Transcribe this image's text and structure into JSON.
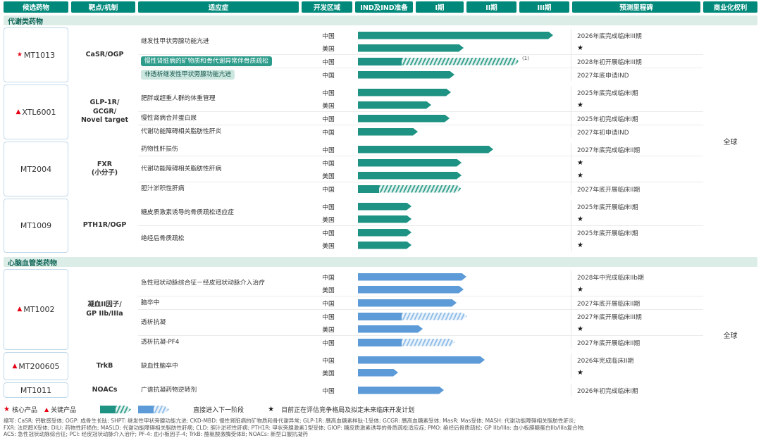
{
  "header": {
    "columns": [
      "候选药物",
      "靶点/机制",
      "适应症",
      "开发区域",
      "IND及IND准备",
      "I期",
      "II期",
      "III期",
      "预测里程碑",
      "商业化权利"
    ]
  },
  "sections": [
    {
      "title": "代谢类药物",
      "theme": "teal",
      "rights": "全球",
      "drugs": [
        {
          "marker": "★",
          "name": "MT1013",
          "target": "CaSR/OGP",
          "indications": [
            {
              "label": "继发性甲状旁腺功能亢进",
              "style": "plain",
              "rows": [
                {
                  "region": "中国",
                  "solid": 277,
                  "hatch": 0,
                  "note": "",
                  "milestone": "2026年底完成临床III期"
                },
                {
                  "region": "美国",
                  "solid": 150,
                  "hatch": 0,
                  "note": "",
                  "milestone": "★"
                }
              ]
            },
            {
              "label": "慢性肾脏病的矿物质和骨代谢异常伴骨质疏松",
              "style": "pill-dark",
              "rows": [
                {
                  "region": "中国",
                  "solid": 62,
                  "hatch": 167,
                  "note": "(1)",
                  "milestone": "2028年初开展临床III期"
                }
              ]
            },
            {
              "label": "非透析继发性甲状旁腺功能亢进",
              "style": "pill-light",
              "rows": [
                {
                  "region": "中国",
                  "solid": 137,
                  "hatch": 0,
                  "note": "",
                  "milestone": "2027年底申请IND"
                }
              ]
            }
          ]
        },
        {
          "marker": "▲",
          "name": "XTL6001",
          "target": "GLP-1R/\nGCGR/\nNovel target",
          "indications": [
            {
              "label": "肥胖或超重人群的体重管理",
              "style": "plain",
              "rows": [
                {
                  "region": "中国",
                  "solid": 132,
                  "hatch": 0,
                  "note": "",
                  "milestone": "2025年底完成临床I期"
                },
                {
                  "region": "美国",
                  "solid": 104,
                  "hatch": 0,
                  "note": "",
                  "milestone": "★"
                }
              ]
            },
            {
              "label": "慢性肾病合并蛋白尿",
              "style": "plain",
              "rows": [
                {
                  "region": "中国",
                  "solid": 130,
                  "hatch": 0,
                  "note": "",
                  "milestone": "2025年初完成临床I期"
                }
              ]
            },
            {
              "label": "代谢功能障碍相关脂肪性肝炎",
              "style": "plain",
              "rows": [
                {
                  "region": "中国",
                  "solid": 85,
                  "hatch": 0,
                  "note": "",
                  "milestone": "2027年初申请IND"
                }
              ]
            }
          ]
        },
        {
          "marker": "",
          "name": "MT2004",
          "target": "FXR\n(小分子)",
          "indications": [
            {
              "label": "药物性肝损伤",
              "style": "plain",
              "rows": [
                {
                  "region": "中国",
                  "solid": 192,
                  "hatch": 0,
                  "note": "",
                  "milestone": "2027年底完成临床II期"
                }
              ]
            },
            {
              "label": "代谢功能障碍相关脂肪性肝病",
              "style": "plain",
              "rows": [
                {
                  "region": "中国",
                  "solid": 147,
                  "hatch": 0,
                  "note": "",
                  "milestone": "★"
                },
                {
                  "region": "美国",
                  "solid": 147,
                  "hatch": 0,
                  "note": "",
                  "milestone": "★"
                }
              ]
            },
            {
              "label": "胆汁淤积性肝病",
              "style": "plain",
              "rows": [
                {
                  "region": "中国",
                  "solid": 30,
                  "hatch": 117,
                  "note": "",
                  "milestone": "2027年底开展临床II期"
                }
              ]
            }
          ]
        },
        {
          "marker": "",
          "name": "MT1009",
          "target": "PTH1R/OGP",
          "indications": [
            {
              "label": "糖皮质激素诱导的骨质疏松适应症",
              "style": "plain",
              "rows": [
                {
                  "region": "中国",
                  "solid": 76,
                  "hatch": 0,
                  "note": "",
                  "milestone": "2025年底开展临床I期"
                },
                {
                  "region": "美国",
                  "solid": 76,
                  "hatch": 0,
                  "note": "",
                  "milestone": "★"
                }
              ]
            },
            {
              "label": "绝经后骨质疏松",
              "style": "plain",
              "rows": [
                {
                  "region": "中国",
                  "solid": 76,
                  "hatch": 0,
                  "note": "",
                  "milestone": "2025年底开展临床I期"
                },
                {
                  "region": "美国",
                  "solid": 76,
                  "hatch": 0,
                  "note": "",
                  "milestone": "★"
                }
              ]
            }
          ]
        }
      ]
    },
    {
      "title": "心脑血管类药物",
      "theme": "blue",
      "rights": "全球",
      "drugs": [
        {
          "marker": "▲",
          "name": "MT1002",
          "target": "凝血II因子/\nGP IIb/IIIa",
          "indications": [
            {
              "label": "急性冠状动脉综合征－经皮冠状动脉介入治疗",
              "style": "plain",
              "rows": [
                {
                  "region": "中国",
                  "solid": 154,
                  "hatch": 0,
                  "note": "",
                  "milestone": "2028年中完成临床IIb期"
                },
                {
                  "region": "美国",
                  "solid": 150,
                  "hatch": 0,
                  "note": "",
                  "milestone": "★"
                }
              ]
            },
            {
              "label": "脑卒中",
              "style": "plain",
              "rows": [
                {
                  "region": "中国",
                  "solid": 140,
                  "hatch": 0,
                  "note": "",
                  "milestone": "2027年底开展临床II期"
                }
              ]
            },
            {
              "label": "透析抗凝",
              "style": "plain",
              "rows": [
                {
                  "region": "中国",
                  "solid": 62,
                  "hatch": 93,
                  "note": "",
                  "milestone": "2027年底开展临床III期"
                },
                {
                  "region": "美国",
                  "solid": 92,
                  "hatch": 0,
                  "note": "",
                  "milestone": "★"
                }
              ]
            },
            {
              "label": "透析抗凝-PF4",
              "style": "plain",
              "rows": [
                {
                  "region": "中国",
                  "solid": 62,
                  "hatch": 76,
                  "note": "",
                  "milestone": "2027年底开展临床II期"
                }
              ]
            }
          ]
        },
        {
          "marker": "▲",
          "name": "MT200605",
          "target": "TrkB",
          "indications": [
            {
              "label": "缺血性脑卒中",
              "style": "plain",
              "rows": [
                {
                  "region": "中国",
                  "solid": 180,
                  "hatch": 0,
                  "note": "",
                  "milestone": "2026年完成临床II期"
                },
                {
                  "region": "美国",
                  "solid": 57,
                  "hatch": 0,
                  "note": "",
                  "milestone": "★"
                }
              ]
            }
          ]
        },
        {
          "marker": "",
          "name": "MT1011",
          "target": "NOACs",
          "indications": [
            {
              "label": "广谱抗凝药物逆转剂",
              "style": "plain",
              "rows": [
                {
                  "region": "中国",
                  "solid": 122,
                  "hatch": 0,
                  "note": "",
                  "milestone": "2026年初完成临床I期"
                }
              ]
            }
          ]
        }
      ]
    }
  ],
  "legend": {
    "star_symbol": "★",
    "triangle_symbol": "▲",
    "core_label": "核心产品",
    "key_label": "关键产品",
    "arrow_note": "直接进入下一阶段",
    "star_note": "目前正在评估竞争格局及拟定未来临床开发计划"
  },
  "footnotes": [
    "缩写: CaSR: 钙敏感受体; OGP: 成骨生长肽; SHPT: 继发性甲状旁腺功能亢进; CKD-MBD: 慢性肾脏病的矿物质和骨代谢异常; GLP-1R: 胰高血糖素样肽-1受体; GCGR: 胰高血糖素受体; MasR: Mas受体; MASH: 代谢功能障碍相关脂肪性肝炎;",
    "FXR: 法尼醇X受体; DILI: 药物性肝损伤; MASLD: 代谢功能障碍相关脂肪性肝病; CLD: 胆汁淤积性肝病; PTH1R: 甲状旁腺激素1型受体; GIOP: 糖皮质激素诱导的骨质疏松适应症; PMO: 绝经后骨质疏松; GP IIb/IIIa: 血小板膜糖蛋白IIb/IIIa复合物;",
    "ACS: 急性冠状动脉综合征; PCI: 经皮冠状动脉介入治疗; PF-4: 血小板因子-4; TrkB: 酪氨酸激酶受体B; NOACs: 新型口服抗凝药"
  ],
  "colors": {
    "header_teal": "#00897B",
    "bar_teal": "#1E9383",
    "bar_blue": "#5C9BD7",
    "band_bg": "#DCEDE8",
    "accent_red": "#E60012"
  }
}
